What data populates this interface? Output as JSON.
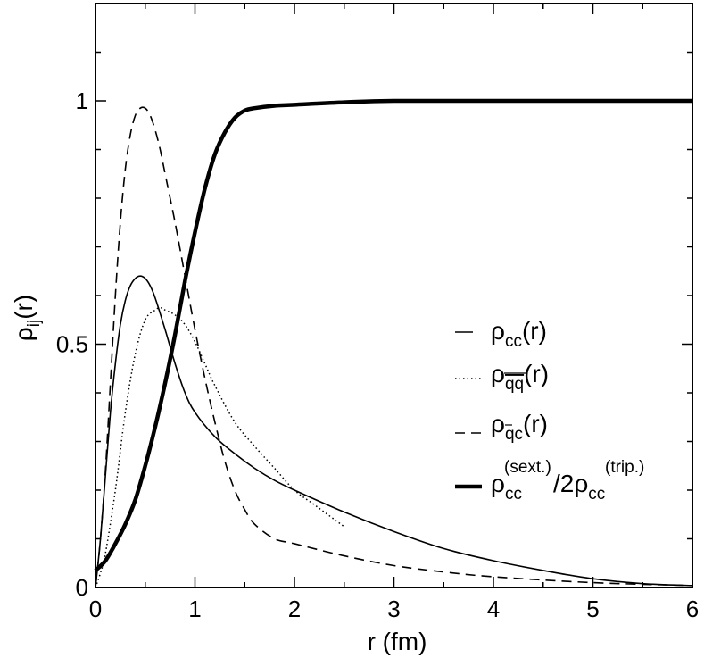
{
  "chart_data": {
    "type": "line",
    "xlabel": "r (fm)",
    "ylabel": {
      "main": "ρ",
      "sub": "ij",
      "tail": "(r)"
    },
    "xlim": [
      0,
      6
    ],
    "ylim": [
      0,
      1.2
    ],
    "x_ticks": [
      0,
      1,
      2,
      3,
      4,
      5,
      6
    ],
    "y_ticks": [
      0,
      0.5,
      1
    ],
    "y_tick_labels": [
      "0",
      "0.5",
      "1"
    ],
    "x_minor_step": 0.5,
    "y_minor_step": 0.1,
    "grid": false,
    "legend_placement": "right",
    "series": [
      {
        "key": "cc",
        "label": {
          "main": "ρ",
          "sub": "cc",
          "tail": "(r)"
        },
        "style": "solid",
        "x": [
          0,
          0.05,
          0.1,
          0.15,
          0.2,
          0.25,
          0.3,
          0.35,
          0.4,
          0.45,
          0.5,
          0.55,
          0.6,
          0.7,
          0.8,
          0.9,
          1.0,
          1.2,
          1.4,
          1.6,
          1.8,
          2.0,
          2.5,
          3.0,
          3.5,
          4.0,
          4.5,
          5.0,
          5.5,
          6.0
        ],
        "y": [
          0,
          0.1,
          0.23,
          0.36,
          0.46,
          0.54,
          0.59,
          0.62,
          0.635,
          0.64,
          0.635,
          0.62,
          0.595,
          0.53,
          0.46,
          0.4,
          0.36,
          0.31,
          0.275,
          0.245,
          0.22,
          0.2,
          0.155,
          0.115,
          0.08,
          0.055,
          0.035,
          0.018,
          0.008,
          0.004
        ]
      },
      {
        "key": "qq",
        "label": {
          "main": "ρ",
          "sub": "qq",
          "tail": "(r)"
        },
        "style": "dotted",
        "x": [
          0,
          0.05,
          0.1,
          0.2,
          0.3,
          0.4,
          0.5,
          0.6,
          0.65,
          0.7,
          0.8,
          0.9,
          1.0,
          1.1,
          1.2,
          1.4,
          1.6,
          1.8,
          2.0,
          2.2,
          2.5
        ],
        "y": [
          0,
          0.03,
          0.07,
          0.2,
          0.36,
          0.48,
          0.55,
          0.57,
          0.575,
          0.57,
          0.56,
          0.54,
          0.505,
          0.46,
          0.415,
          0.34,
          0.29,
          0.245,
          0.2,
          0.17,
          0.125
        ]
      },
      {
        "key": "qc",
        "label": {
          "main": "ρ",
          "sub": "qc",
          "tail": "(r)"
        },
        "style": "dashed",
        "x": [
          0,
          0.05,
          0.1,
          0.15,
          0.2,
          0.25,
          0.3,
          0.35,
          0.4,
          0.45,
          0.5,
          0.55,
          0.6,
          0.65,
          0.7,
          0.8,
          0.9,
          1.0,
          1.1,
          1.2,
          1.3,
          1.4,
          1.5,
          1.6,
          1.8,
          2.0,
          2.5,
          3.0,
          3.5,
          4.0,
          5.0,
          6.0
        ],
        "y": [
          0,
          0.1,
          0.24,
          0.42,
          0.6,
          0.75,
          0.86,
          0.93,
          0.97,
          0.985,
          0.985,
          0.97,
          0.94,
          0.9,
          0.85,
          0.75,
          0.64,
          0.53,
          0.43,
          0.34,
          0.26,
          0.2,
          0.16,
          0.13,
          0.1,
          0.09,
          0.065,
          0.045,
          0.032,
          0.022,
          0.01,
          0.004
        ]
      },
      {
        "key": "ratio",
        "label": {
          "main": "ρ",
          "sub": "cc",
          "sup": "(sext.)",
          "mid": "/2ρ",
          "sub2": "cc",
          "sup2": "(trip.)"
        },
        "style": "thick",
        "x": [
          0,
          0.1,
          0.2,
          0.3,
          0.4,
          0.5,
          0.6,
          0.7,
          0.8,
          0.9,
          1.0,
          1.1,
          1.2,
          1.3,
          1.4,
          1.5,
          1.6,
          1.8,
          2.0,
          2.5,
          3.0,
          4.0,
          5.0,
          6.0
        ],
        "y": [
          0.035,
          0.055,
          0.09,
          0.13,
          0.18,
          0.25,
          0.33,
          0.42,
          0.52,
          0.63,
          0.73,
          0.82,
          0.89,
          0.935,
          0.965,
          0.98,
          0.985,
          0.99,
          0.992,
          0.997,
          1.0,
          1.0,
          1.0,
          1.0
        ]
      }
    ]
  }
}
